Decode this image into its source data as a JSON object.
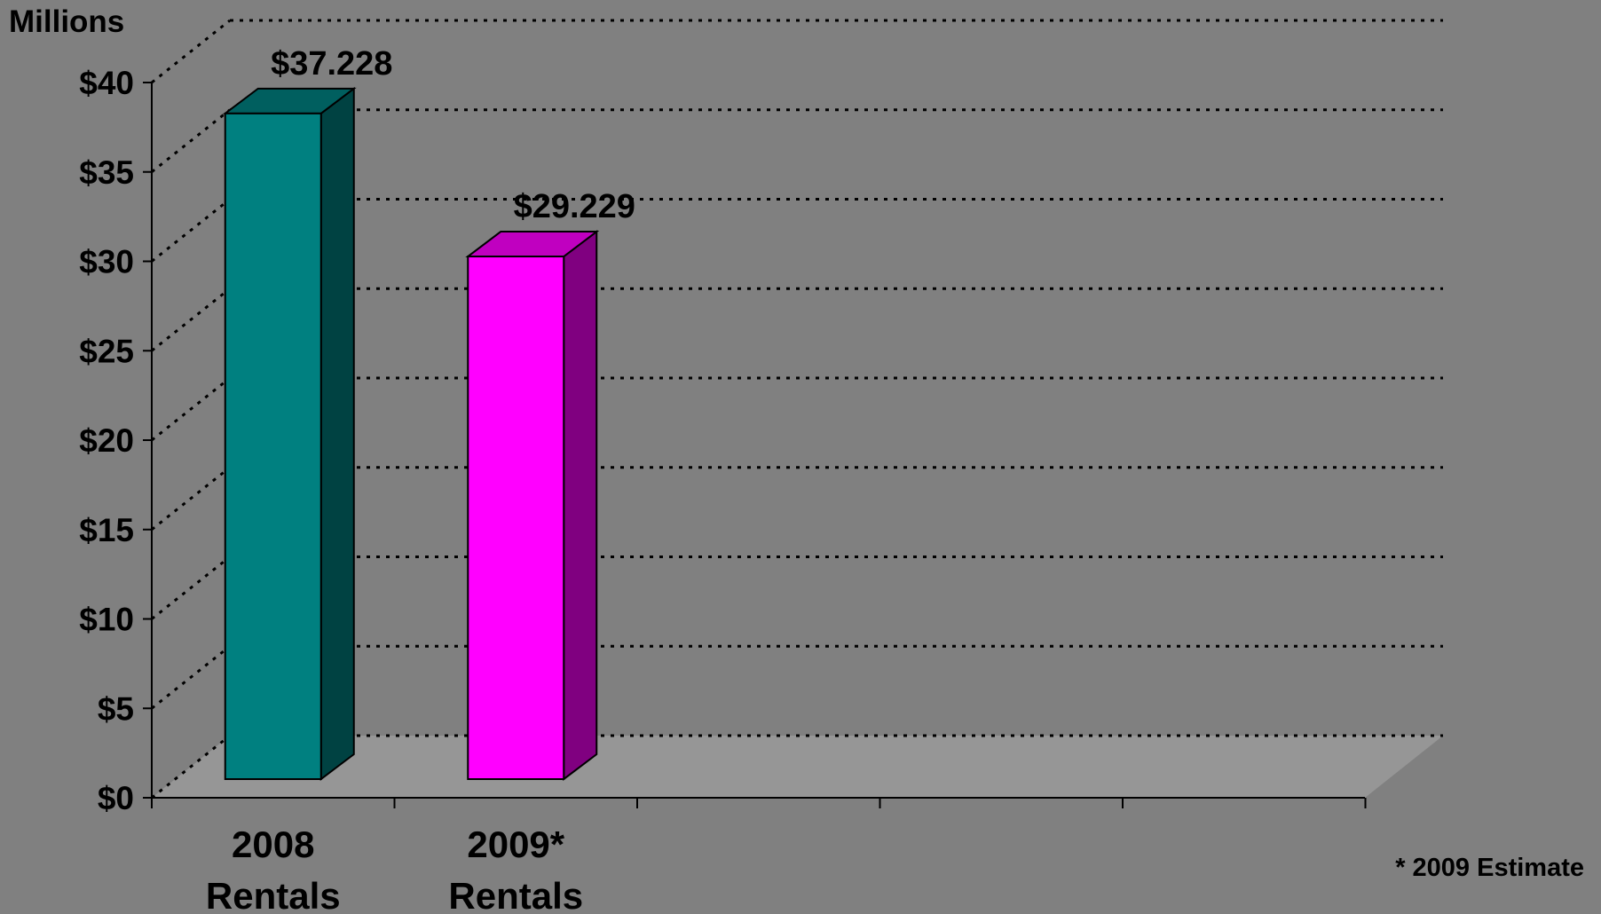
{
  "chart_data": {
    "type": "bar",
    "style": "3d-column",
    "categories": [
      "2008\nRentals",
      "2009*\nRentals"
    ],
    "values": [
      37.228,
      29.229
    ],
    "data_labels": [
      "$37.228",
      "$29.229"
    ],
    "y_unit": "Millions",
    "ylim": [
      0,
      40
    ],
    "y_ticks": [
      "$0",
      "$5",
      "$10",
      "$15",
      "$20",
      "$25",
      "$30",
      "$35",
      "$40"
    ],
    "grid": true,
    "grid_style": "dotted",
    "footnote": "* 2009 Estimate",
    "colors": {
      "background": "#808080",
      "floor": "#969696",
      "series": [
        {
          "front": "#008080",
          "side": "#004242",
          "top": "#005f5f"
        },
        {
          "front": "#ff00ff",
          "side": "#800080",
          "top": "#c000c0"
        }
      ]
    }
  }
}
